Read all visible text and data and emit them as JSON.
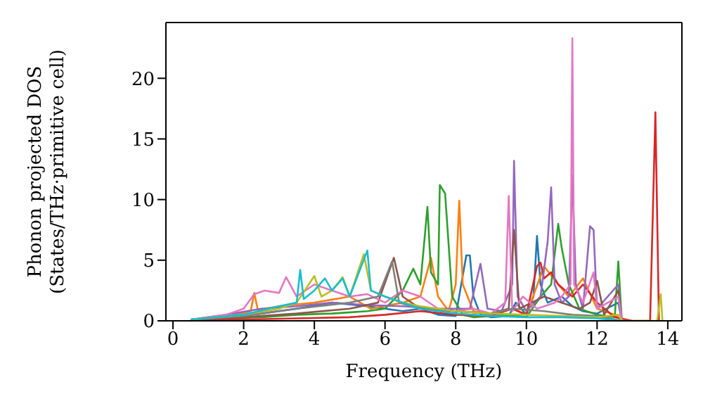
{
  "chart_data": {
    "type": "line",
    "xlabel": "Frequency (THz)",
    "ylabel": "Phonon projected DOS\n(States/THz·primitive cell)",
    "xlim": [
      -0.2,
      14.4
    ],
    "xticks": [
      0,
      2,
      4,
      6,
      8,
      10,
      12,
      14
    ],
    "ylim": [
      0,
      24.6
    ],
    "yticks": [
      0,
      5,
      10,
      15,
      20
    ],
    "marker": "none",
    "line_style": "solid",
    "series": [
      {
        "color": "#1f77b4",
        "x": [
          0.5,
          1.5,
          2.5,
          3.5,
          4.5,
          5.5,
          6.5,
          7.0,
          7.5,
          8.0,
          8.3,
          8.4,
          8.5,
          8.7,
          9.0,
          9.5,
          9.7,
          10.0,
          10.2,
          10.3,
          10.4,
          10.6,
          11.0,
          11.3,
          11.6,
          12.0,
          12.6,
          12.7,
          13.0
        ],
        "values": [
          0.1,
          0.3,
          0.6,
          1.0,
          1.5,
          1.2,
          0.8,
          1.0,
          0.5,
          0.4,
          5.4,
          5.4,
          2.0,
          0.5,
          0.3,
          0.4,
          1.5,
          0.5,
          2.0,
          7.0,
          3.0,
          1.5,
          2.0,
          1.2,
          0.8,
          0.6,
          1.5,
          0,
          0
        ]
      },
      {
        "color": "#ff7f0e",
        "x": [
          0.5,
          1.5,
          2.2,
          2.3,
          2.4,
          3.0,
          4.0,
          5.0,
          5.6,
          6.5,
          7.0,
          7.3,
          7.5,
          7.8,
          8.0,
          8.1,
          8.2,
          8.5,
          9.0,
          9.6,
          10.0,
          10.5,
          10.9,
          11.2,
          11.6,
          12.0,
          12.5,
          12.7
        ],
        "values": [
          0.1,
          0.3,
          0.8,
          2.3,
          0.9,
          1.2,
          1.5,
          2.0,
          1.0,
          1.5,
          2.0,
          5.2,
          2.0,
          0.8,
          3.0,
          9.9,
          3.0,
          0.8,
          0.5,
          1.0,
          0.5,
          4.5,
          3.0,
          2.0,
          3.5,
          1.0,
          0.5,
          0
        ]
      },
      {
        "color": "#2ca02c",
        "x": [
          0.5,
          1.5,
          2.5,
          3.5,
          4.5,
          5.5,
          6.0,
          6.5,
          6.8,
          7.0,
          7.2,
          7.3,
          7.5,
          7.55,
          7.7,
          7.9,
          8.2,
          8.5,
          9.0,
          9.5,
          10.0,
          10.4,
          10.7,
          10.9,
          11.0,
          11.2,
          11.5,
          12.0,
          12.5,
          12.6,
          12.7
        ],
        "values": [
          0.1,
          0.2,
          0.3,
          0.5,
          0.6,
          0.8,
          1.0,
          2.5,
          4.3,
          3.0,
          9.4,
          4.0,
          3.0,
          11.2,
          10.5,
          2.0,
          0.5,
          0.3,
          0.4,
          0.5,
          0.3,
          2.0,
          3.0,
          8.0,
          6.0,
          3.0,
          1.0,
          0.5,
          0.3,
          4.9,
          0
        ]
      },
      {
        "color": "#d62728",
        "x": [
          0.5,
          2.0,
          3.5,
          5.0,
          6.0,
          7.0,
          8.0,
          9.0,
          9.6,
          10.0,
          10.3,
          10.4,
          10.5,
          10.7,
          10.9,
          11.3,
          11.6,
          12.0,
          12.5,
          13.0,
          13.5,
          13.65,
          13.75
        ],
        "values": [
          0.1,
          0.1,
          0.2,
          0.3,
          0.5,
          0.8,
          0.5,
          0.4,
          1.0,
          0.5,
          4.5,
          4.8,
          3.5,
          4.0,
          3.0,
          2.0,
          3.0,
          1.5,
          0.3,
          0,
          0,
          17.2,
          0
        ]
      },
      {
        "color": "#9467bd",
        "x": [
          0.5,
          1.5,
          2.5,
          3.5,
          4.5,
          5.5,
          6.5,
          7.5,
          8.4,
          8.7,
          8.9,
          9.3,
          9.6,
          9.65,
          9.75,
          10.0,
          10.4,
          10.6,
          10.7,
          10.8,
          11.0,
          11.2,
          11.3,
          11.4,
          11.6,
          11.8,
          11.9,
          12.0,
          12.6,
          12.7
        ],
        "values": [
          0.1,
          0.5,
          1.0,
          1.2,
          1.5,
          1.3,
          1.2,
          1.0,
          1.0,
          4.7,
          1.0,
          0.8,
          3.0,
          13.2,
          2.0,
          0.8,
          2.0,
          6.5,
          11.0,
          3.0,
          1.5,
          2.0,
          12.0,
          3.0,
          1.0,
          7.8,
          7.5,
          1.0,
          3.0,
          0
        ]
      },
      {
        "color": "#8c564b",
        "x": [
          0.5,
          2.0,
          3.5,
          5.0,
          5.8,
          6.25,
          6.5,
          7.0,
          8.0,
          9.0,
          9.5,
          9.65,
          9.8,
          10.5,
          11.0,
          11.5,
          11.8,
          12.0,
          12.2,
          12.6,
          12.7
        ],
        "values": [
          0.1,
          0.3,
          0.6,
          1.0,
          1.5,
          5.2,
          2.0,
          1.0,
          0.8,
          0.6,
          1.0,
          7.5,
          1.0,
          2.0,
          1.5,
          1.0,
          1.5,
          3.3,
          0.5,
          2.5,
          0
        ]
      },
      {
        "color": "#e377c2",
        "x": [
          0.5,
          1.5,
          2.0,
          2.3,
          2.6,
          3.0,
          3.2,
          3.5,
          4.0,
          4.5,
          5.0,
          5.5,
          6.0,
          6.5,
          7.0,
          7.5,
          8.0,
          8.5,
          9.0,
          9.4,
          9.5,
          9.6,
          9.9,
          10.3,
          10.8,
          11.0,
          11.25,
          11.3,
          11.35,
          11.6,
          11.9,
          12.0,
          12.6,
          12.7
        ],
        "values": [
          0.1,
          0.5,
          1.0,
          2.2,
          2.5,
          2.3,
          3.6,
          2.0,
          3.0,
          2.5,
          2.0,
          2.2,
          1.5,
          2.5,
          2.0,
          1.0,
          0.8,
          1.0,
          0.6,
          1.5,
          10.3,
          0.8,
          2.0,
          1.0,
          1.5,
          2.0,
          3.0,
          23.3,
          3.0,
          1.5,
          4.0,
          1.0,
          2.0,
          0
        ]
      },
      {
        "color": "#7f7f7f",
        "x": [
          0.5,
          2.0,
          3.5,
          5.0,
          5.8,
          6.2,
          6.4,
          7.0,
          8.0,
          9.0,
          9.6,
          10.5,
          11.3,
          12.0,
          12.7
        ],
        "values": [
          0.1,
          0.4,
          1.0,
          1.5,
          2.0,
          4.9,
          1.5,
          1.0,
          0.8,
          0.6,
          1.0,
          0.8,
          0.5,
          0.4,
          0
        ]
      },
      {
        "color": "#bcbd22",
        "x": [
          0.5,
          2.0,
          3.0,
          3.5,
          4.0,
          4.2,
          4.5,
          4.8,
          5.0,
          5.4,
          5.6,
          6.0,
          6.5,
          7.0,
          7.5,
          8.0,
          9.0,
          10.0,
          11.0,
          12.0,
          12.6,
          12.7,
          13.7,
          13.8,
          13.85
        ],
        "values": [
          0.1,
          0.5,
          1.0,
          1.5,
          3.7,
          2.0,
          2.5,
          3.6,
          2.0,
          5.5,
          2.5,
          2.0,
          1.5,
          1.2,
          1.0,
          0.8,
          0.6,
          0.5,
          0.4,
          0.3,
          0.5,
          0,
          0,
          2.2,
          0
        ]
      },
      {
        "color": "#17becf",
        "x": [
          0.5,
          2.0,
          3.0,
          3.5,
          3.6,
          3.7,
          4.0,
          4.3,
          4.5,
          4.8,
          5.0,
          5.5,
          5.6,
          6.0,
          6.5,
          7.0,
          8.0,
          9.0,
          10.0,
          11.0,
          12.0,
          12.7
        ],
        "values": [
          0.1,
          0.5,
          1.2,
          1.5,
          4.2,
          1.8,
          2.5,
          3.5,
          2.5,
          3.5,
          2.0,
          5.8,
          2.5,
          2.0,
          1.5,
          1.0,
          0.6,
          0.4,
          0.3,
          0.3,
          0.2,
          0
        ]
      }
    ]
  }
}
